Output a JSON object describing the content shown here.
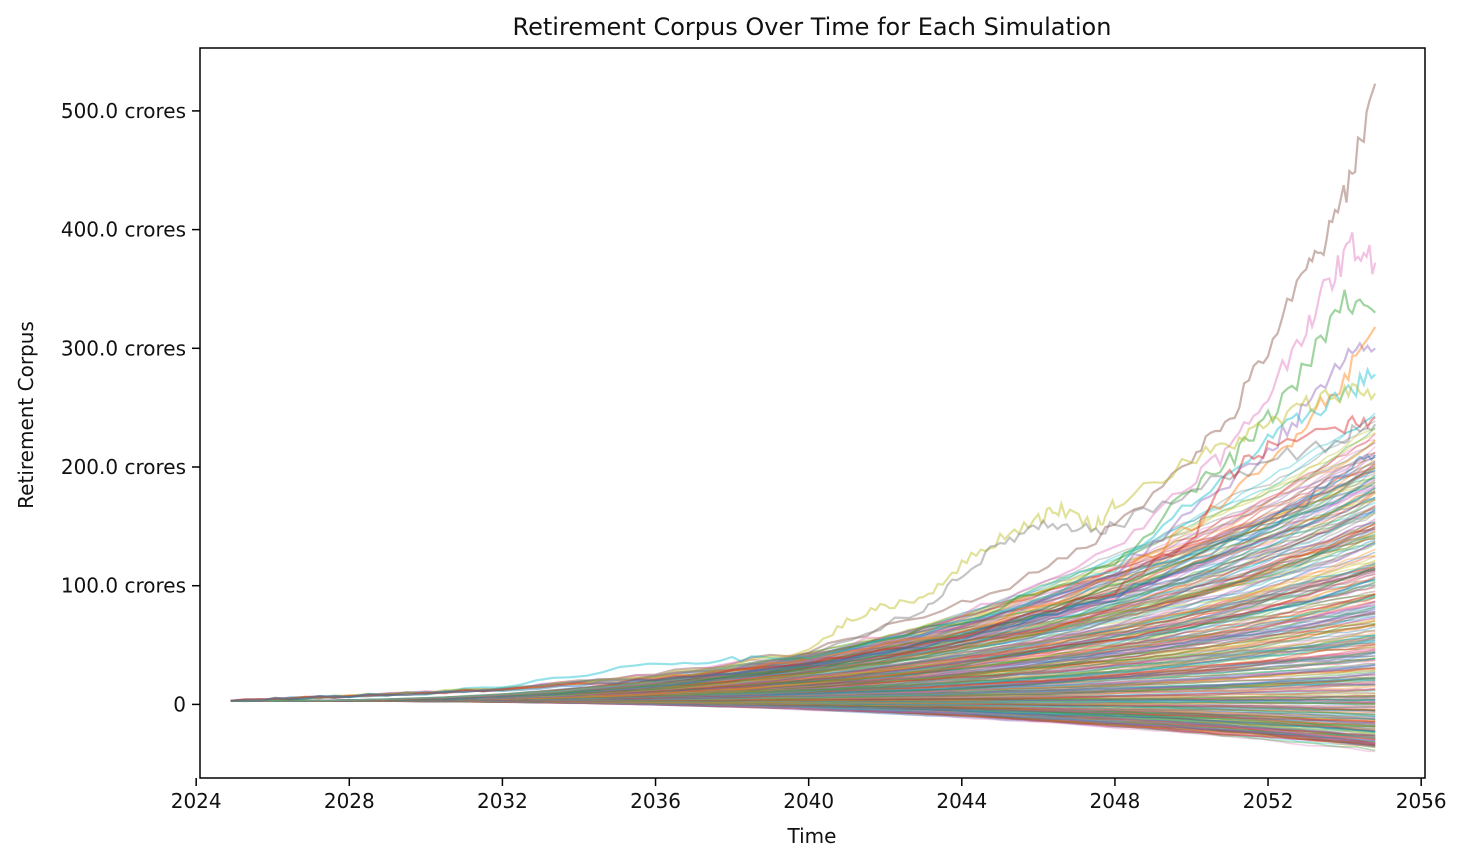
{
  "chart_data": {
    "type": "line",
    "title": "Retirement Corpus Over Time for Each Simulation",
    "xlabel": "Time",
    "ylabel": "Retirement Corpus",
    "xlim": [
      2024.1,
      2056.1
    ],
    "ylim": [
      -62,
      553
    ],
    "x_ticks": [
      {
        "value": 2024,
        "label": "2024"
      },
      {
        "value": 2028,
        "label": "2028"
      },
      {
        "value": 2032,
        "label": "2032"
      },
      {
        "value": 2036,
        "label": "2036"
      },
      {
        "value": 2040,
        "label": "2040"
      },
      {
        "value": 2044,
        "label": "2044"
      },
      {
        "value": 2048,
        "label": "2048"
      },
      {
        "value": 2052,
        "label": "2052"
      },
      {
        "value": 2056,
        "label": "2056"
      }
    ],
    "y_ticks": [
      {
        "value": 0,
        "label": "0"
      },
      {
        "value": 100,
        "label": "100.0 crores"
      },
      {
        "value": 200,
        "label": "200.0 crores"
      },
      {
        "value": 300,
        "label": "300.0 crores"
      },
      {
        "value": 400,
        "label": "400.0 crores"
      },
      {
        "value": 500,
        "label": "500.0 crores"
      }
    ],
    "x_start": 2024.9,
    "x_end": 2054.8,
    "grid": false,
    "legend": "none",
    "series": [
      {
        "color": "#8c564b",
        "values": [
          [
            2024.9,
            3
          ],
          [
            2028,
            7
          ],
          [
            2032,
            13
          ],
          [
            2036,
            25
          ],
          [
            2040,
            45
          ],
          [
            2044,
            85
          ],
          [
            2046,
            110
          ],
          [
            2048,
            150
          ],
          [
            2050,
            210
          ],
          [
            2051,
            240
          ],
          [
            2052,
            300
          ],
          [
            2053,
            365
          ],
          [
            2053.6,
            395
          ],
          [
            2054.2,
            450
          ],
          [
            2054.8,
            523
          ]
        ]
      },
      {
        "color": "#e377c2",
        "values": [
          [
            2024.9,
            3
          ],
          [
            2028,
            7
          ],
          [
            2032,
            13
          ],
          [
            2036,
            25
          ],
          [
            2040,
            42
          ],
          [
            2044,
            75
          ],
          [
            2048,
            130
          ],
          [
            2050,
            190
          ],
          [
            2051,
            215
          ],
          [
            2052,
            260
          ],
          [
            2053,
            320
          ],
          [
            2053.6,
            355
          ],
          [
            2054.2,
            388
          ],
          [
            2054.8,
            372
          ]
        ]
      },
      {
        "color": "#2ca02c",
        "values": [
          [
            2024.9,
            3
          ],
          [
            2028,
            7
          ],
          [
            2032,
            13
          ],
          [
            2036,
            24
          ],
          [
            2040,
            40
          ],
          [
            2044,
            70
          ],
          [
            2048,
            120
          ],
          [
            2050,
            180
          ],
          [
            2051,
            205
          ],
          [
            2052,
            240
          ],
          [
            2053,
            285
          ],
          [
            2054,
            340
          ],
          [
            2054.8,
            330
          ]
        ]
      },
      {
        "color": "#9467bd",
        "values": [
          [
            2024.9,
            3
          ],
          [
            2028,
            7
          ],
          [
            2032,
            13
          ],
          [
            2036,
            23
          ],
          [
            2040,
            38
          ],
          [
            2044,
            65
          ],
          [
            2048,
            110
          ],
          [
            2050,
            160
          ],
          [
            2052,
            215
          ],
          [
            2053,
            250
          ],
          [
            2054,
            290
          ],
          [
            2054.8,
            300
          ]
        ]
      },
      {
        "color": "#ff7f0e",
        "values": [
          [
            2024.9,
            3
          ],
          [
            2028,
            7
          ],
          [
            2032,
            13
          ],
          [
            2036,
            22
          ],
          [
            2040,
            37
          ],
          [
            2044,
            62
          ],
          [
            2048,
            105
          ],
          [
            2050,
            150
          ],
          [
            2052,
            200
          ],
          [
            2053,
            240
          ],
          [
            2054,
            275
          ],
          [
            2054.8,
            318
          ]
        ]
      },
      {
        "color": "#17becf",
        "values": [
          [
            2024.9,
            3
          ],
          [
            2028,
            7
          ],
          [
            2032,
            14
          ],
          [
            2035.5,
            33
          ],
          [
            2038,
            38
          ],
          [
            2040,
            40
          ],
          [
            2044,
            68
          ],
          [
            2048,
            112
          ],
          [
            2050,
            170
          ],
          [
            2052,
            220
          ],
          [
            2053,
            245
          ],
          [
            2054,
            262
          ],
          [
            2054.8,
            278
          ]
        ]
      },
      {
        "color": "#bcbd22",
        "values": [
          [
            2024.9,
            3
          ],
          [
            2028,
            7
          ],
          [
            2032,
            13
          ],
          [
            2036,
            24
          ],
          [
            2040,
            45
          ],
          [
            2041,
            70
          ],
          [
            2042,
            83
          ],
          [
            2043,
            90
          ],
          [
            2044,
            118
          ],
          [
            2045,
            140
          ],
          [
            2046,
            157
          ],
          [
            2046.6,
            165
          ],
          [
            2047.5,
            150
          ],
          [
            2048,
            170
          ],
          [
            2050,
            205
          ],
          [
            2051,
            220
          ],
          [
            2052,
            235
          ],
          [
            2053,
            252
          ],
          [
            2054,
            265
          ],
          [
            2054.8,
            262
          ]
        ]
      },
      {
        "color": "#7f7f7f",
        "values": [
          [
            2024.9,
            3
          ],
          [
            2028,
            7
          ],
          [
            2032,
            13
          ],
          [
            2036,
            24
          ],
          [
            2040,
            40
          ],
          [
            2043,
            80
          ],
          [
            2044,
            110
          ],
          [
            2045,
            135
          ],
          [
            2046,
            150
          ],
          [
            2047,
            146
          ],
          [
            2048,
            150
          ],
          [
            2050,
            180
          ],
          [
            2052,
            205
          ],
          [
            2054,
            225
          ],
          [
            2054.8,
            236
          ]
        ]
      },
      {
        "color": "#d62728",
        "values": [
          [
            2024.9,
            3
          ],
          [
            2028,
            7
          ],
          [
            2032,
            12
          ],
          [
            2036,
            21
          ],
          [
            2040,
            34
          ],
          [
            2044,
            58
          ],
          [
            2048,
            95
          ],
          [
            2050,
            140
          ],
          [
            2051,
            195
          ],
          [
            2052,
            215
          ],
          [
            2054,
            236
          ],
          [
            2054.8,
            242
          ]
        ]
      },
      {
        "color": "#1f77b4",
        "values": [
          [
            2024.9,
            3
          ],
          [
            2028,
            7
          ],
          [
            2032,
            12
          ],
          [
            2036,
            21
          ],
          [
            2040,
            33
          ],
          [
            2044,
            55
          ],
          [
            2048,
            90
          ],
          [
            2052,
            150
          ],
          [
            2054,
            195
          ],
          [
            2054.8,
            210
          ]
        ]
      }
    ]
  }
}
